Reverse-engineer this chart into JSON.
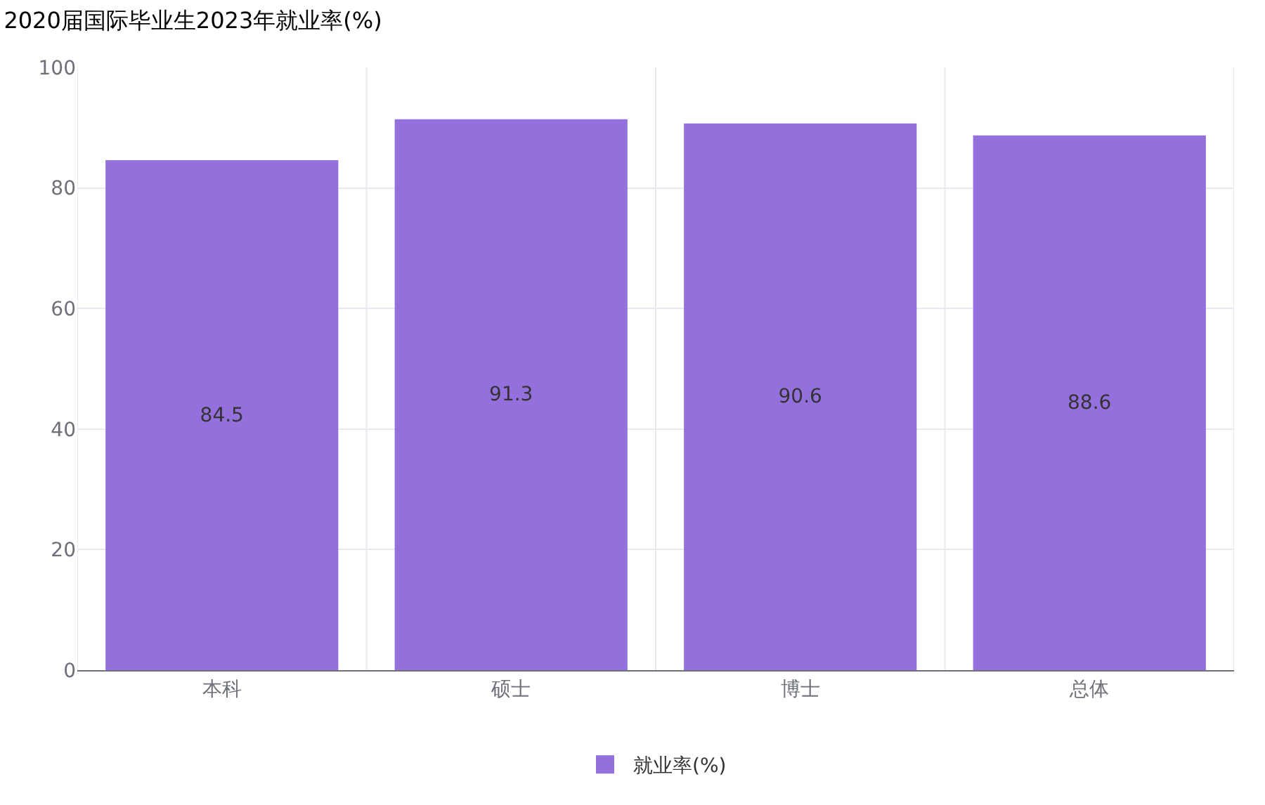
{
  "chart_data": {
    "type": "bar",
    "title": "2020届国际毕业生2023年就业率(%)",
    "categories": [
      "本科",
      "硕士",
      "博士",
      "总体"
    ],
    "series": [
      {
        "name": "就业率(%)",
        "color": "#9370db",
        "values": [
          84.5,
          91.3,
          90.6,
          88.6
        ]
      }
    ],
    "ylim": [
      0,
      100
    ],
    "yticks": [
      0,
      20,
      40,
      60,
      80,
      100
    ],
    "grid": true,
    "legend": "bottom",
    "data_labels": true
  }
}
